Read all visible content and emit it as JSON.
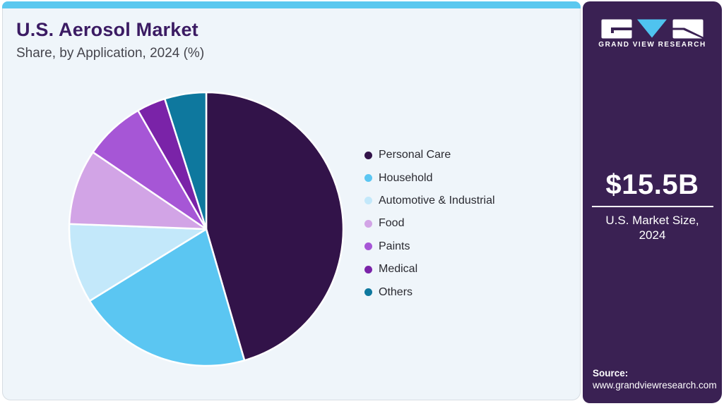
{
  "header": {
    "title": "U.S. Aerosol Market",
    "subtitle": "Share, by Application, 2024 (%)"
  },
  "chart_data": {
    "type": "pie",
    "title": "U.S. Aerosol Market Share, by Application, 2024 (%)",
    "unit": "%",
    "start_angle_deg": 0,
    "direction": "clockwise",
    "legend_position": "right",
    "categories": [
      "Personal Care",
      "Household",
      "Automotive & Industrial",
      "Food",
      "Paints",
      "Medical",
      "Others"
    ],
    "values": [
      45.5,
      20.7,
      9.4,
      8.9,
      7.2,
      3.4,
      4.9
    ],
    "colors": [
      "#321349",
      "#5bc6f2",
      "#c3e8fa",
      "#d2a4e6",
      "#a656d6",
      "#7a23a8",
      "#0e789e"
    ]
  },
  "sidebar": {
    "brand": "GRAND VIEW RESEARCH",
    "market_size_value": "$15.5B",
    "market_caption_line1": "U.S. Market Size,",
    "market_caption_line2": "2024",
    "source_label": "Source:",
    "source_url": "www.grandviewresearch.com"
  },
  "colors": {
    "accent_topbar": "#5bc8ef",
    "card_background": "#eff5fa",
    "sidebar_background": "#3a2153",
    "title_text": "#3b1b63",
    "logo_v_blue": "#4fc3ef"
  }
}
